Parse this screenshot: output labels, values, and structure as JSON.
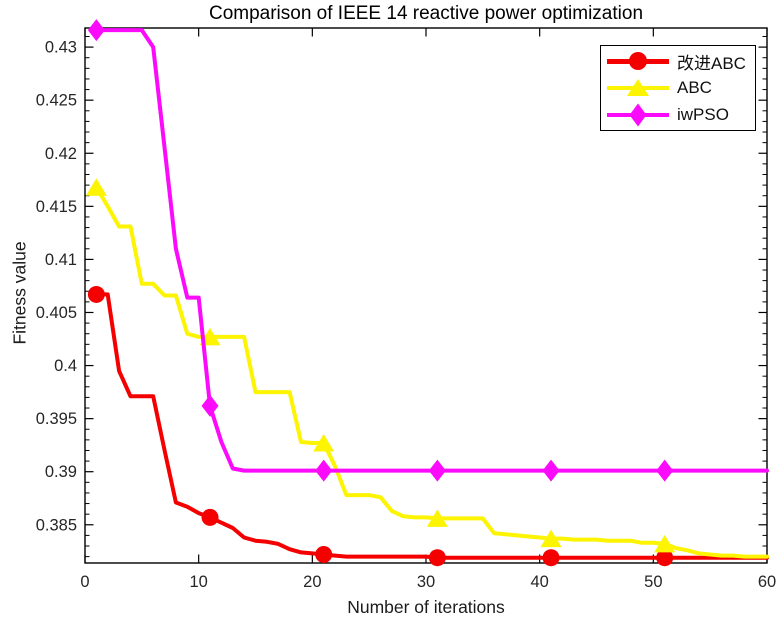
{
  "chart_data": {
    "type": "line",
    "title": "Comparison of IEEE 14 reactive power optimization",
    "xlabel": "Number of iterations",
    "ylabel": "Fitness value",
    "xlim": [
      0,
      60
    ],
    "ylim": [
      0.3814,
      0.4318
    ],
    "xticks": [
      0,
      10,
      20,
      30,
      40,
      50,
      60
    ],
    "xtick_labels": [
      "0",
      "10",
      "20",
      "30",
      "40",
      "50",
      "60"
    ],
    "yticks": [
      0.385,
      0.39,
      0.395,
      0.4,
      0.405,
      0.41,
      0.415,
      0.42,
      0.425,
      0.43
    ],
    "ytick_labels": [
      "0.385",
      "0.39",
      "0.395",
      "0.4",
      "0.405",
      "0.41",
      "0.415",
      "0.42",
      "0.425",
      "0.43"
    ],
    "y_minor_tick_step": 0.001,
    "grid": "off",
    "box": "on",
    "axis_color": "#000000",
    "tick_label_color": "#262626",
    "legend": {
      "position": "top-right",
      "border_color": "#000000",
      "background": "#ffffff"
    },
    "x": [
      1,
      2,
      3,
      4,
      5,
      6,
      7,
      8,
      9,
      10,
      11,
      12,
      13,
      14,
      15,
      16,
      17,
      18,
      19,
      20,
      21,
      22,
      23,
      24,
      25,
      26,
      27,
      28,
      29,
      30,
      31,
      32,
      33,
      34,
      35,
      36,
      37,
      38,
      39,
      40,
      41,
      42,
      43,
      44,
      45,
      46,
      47,
      48,
      49,
      50,
      51,
      52,
      53,
      54,
      55,
      56,
      57,
      58,
      59,
      60
    ],
    "marker_indices": [
      0,
      10,
      20,
      30,
      40,
      50
    ],
    "series": [
      {
        "name": "改进ABC",
        "color": "#f40000",
        "marker": "circle",
        "line_width": 4,
        "values": [
          0.4067,
          0.4067,
          0.3995,
          0.3971,
          0.3971,
          0.3971,
          0.392,
          0.3871,
          0.3867,
          0.3861,
          0.3857,
          0.3852,
          0.3847,
          0.3838,
          0.3835,
          0.3834,
          0.3832,
          0.3827,
          0.3824,
          0.3823,
          0.3822,
          0.3821,
          0.382,
          0.382,
          0.382,
          0.382,
          0.382,
          0.382,
          0.382,
          0.382,
          0.3819,
          0.3819,
          0.3819,
          0.3819,
          0.3819,
          0.3819,
          0.3819,
          0.3819,
          0.3819,
          0.3819,
          0.3819,
          0.3819,
          0.3819,
          0.3819,
          0.3819,
          0.3819,
          0.3819,
          0.3819,
          0.3819,
          0.3819,
          0.3819,
          0.3819,
          0.3819,
          0.3819,
          0.3819,
          0.3819,
          0.3819,
          0.3819,
          0.3819,
          0.3819
        ]
      },
      {
        "name": "ABC",
        "color": "#fcf400",
        "marker": "triangle",
        "line_width": 4,
        "values": [
          0.4168,
          0.415,
          0.4131,
          0.4131,
          0.4077,
          0.4077,
          0.4066,
          0.4066,
          0.403,
          0.4027,
          0.4027,
          0.4027,
          0.4027,
          0.4027,
          0.3975,
          0.3975,
          0.3975,
          0.3975,
          0.3928,
          0.3927,
          0.3927,
          0.3905,
          0.3878,
          0.3878,
          0.3878,
          0.3876,
          0.3863,
          0.3858,
          0.3857,
          0.3857,
          0.3856,
          0.3856,
          0.3856,
          0.3856,
          0.3856,
          0.3842,
          0.3841,
          0.384,
          0.3839,
          0.3838,
          0.3837,
          0.3837,
          0.3836,
          0.3836,
          0.3836,
          0.3835,
          0.3835,
          0.3835,
          0.3833,
          0.3833,
          0.3832,
          0.3828,
          0.3826,
          0.3823,
          0.3822,
          0.3821,
          0.3821,
          0.382,
          0.382,
          0.382
        ]
      },
      {
        "name": "iwPSO",
        "color": "#fb0afb",
        "marker": "diamond",
        "line_width": 4,
        "values": [
          0.4316,
          0.4316,
          0.4316,
          0.4316,
          0.4316,
          0.43,
          0.4205,
          0.411,
          0.4064,
          0.4064,
          0.3962,
          0.3928,
          0.3903,
          0.3901,
          0.3901,
          0.3901,
          0.3901,
          0.3901,
          0.3901,
          0.3901,
          0.3901,
          0.3901,
          0.3901,
          0.3901,
          0.3901,
          0.3901,
          0.3901,
          0.3901,
          0.3901,
          0.3901,
          0.3901,
          0.3901,
          0.3901,
          0.3901,
          0.3901,
          0.3901,
          0.3901,
          0.3901,
          0.3901,
          0.3901,
          0.3901,
          0.3901,
          0.3901,
          0.3901,
          0.3901,
          0.3901,
          0.3901,
          0.3901,
          0.3901,
          0.3901,
          0.3901,
          0.3901,
          0.3901,
          0.3901,
          0.3901,
          0.3901,
          0.3901,
          0.3901,
          0.3901,
          0.3901
        ]
      }
    ]
  }
}
